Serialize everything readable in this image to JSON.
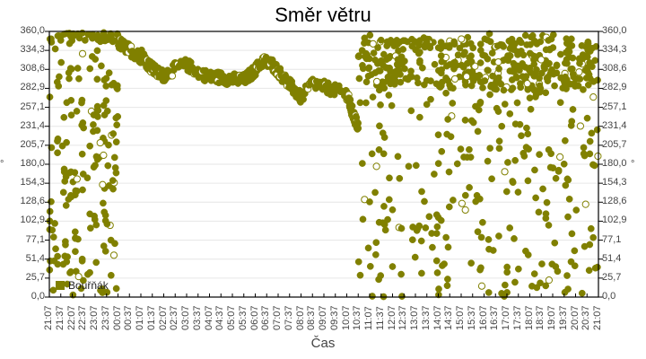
{
  "chart_data": {
    "type": "scatter",
    "title": "Směr větru",
    "xlabel": "Čas",
    "ylabel": "°",
    "ylim": [
      0,
      360
    ],
    "y_ticks": [
      "0,0",
      "25,7",
      "51,4",
      "77,1",
      "102,9",
      "128,6",
      "154,3",
      "180,0",
      "205,7",
      "231,4",
      "257,1",
      "282,9",
      "308,6",
      "334,3",
      "360,0"
    ],
    "x_ticks": [
      "21:07",
      "21:37",
      "22:07",
      "22:37",
      "23:07",
      "23:37",
      "00:07",
      "00:37",
      "01:07",
      "01:37",
      "02:07",
      "02:37",
      "03:07",
      "03:37",
      "04:07",
      "04:37",
      "05:07",
      "05:37",
      "06:07",
      "06:37",
      "07:07",
      "07:37",
      "08:07",
      "08:37",
      "09:07",
      "09:37",
      "10:07",
      "10:37",
      "11:07",
      "11:37",
      "12:07",
      "12:37",
      "13:07",
      "13:37",
      "14:07",
      "14:37",
      "15:07",
      "15:37",
      "16:07",
      "16:37",
      "17:07",
      "17:37",
      "18:07",
      "18:37",
      "19:07",
      "19:37",
      "20:07",
      "20:37",
      "21:07"
    ],
    "grid": true,
    "legend_position": "lower-left-inside",
    "series": [
      {
        "name": "Bouřňák",
        "color": "#808000",
        "description": "Wind direction samples over 24h; scattered 0–360° from 21:07–00:07, steady band ~290–330° from 00:37–09:37, scattered again 10:07–21:07 with cluster near 300–350°",
        "segments": [
          {
            "from": 0.0,
            "to": 6.0,
            "mode": "scatter",
            "min": 0,
            "max": 360,
            "count": 170
          },
          {
            "from": 0.0,
            "to": 6.0,
            "mode": "band",
            "center": 352,
            "spread": 6,
            "count": 40
          },
          {
            "from": 6.0,
            "to": 8.0,
            "mode": "trend",
            "values": [
              345,
              340,
              335,
              330,
              325
            ]
          },
          {
            "from": 8.0,
            "to": 10.0,
            "mode": "trend",
            "values": [
              330,
              315,
              305,
              300
            ]
          },
          {
            "from": 10.0,
            "to": 14.0,
            "mode": "trend",
            "values": [
              300,
              310,
              315,
              305,
              298
            ]
          },
          {
            "from": 14.0,
            "to": 17.0,
            "mode": "trend",
            "values": [
              298,
              298,
              296,
              295,
              294
            ]
          },
          {
            "from": 17.0,
            "to": 19.5,
            "mode": "trend",
            "values": [
              294,
              305,
              320,
              315
            ]
          },
          {
            "from": 19.5,
            "to": 22.0,
            "mode": "trend",
            "values": [
              315,
              300,
              285,
              270
            ]
          },
          {
            "from": 22.0,
            "to": 26.0,
            "mode": "trend",
            "values": [
              270,
              290,
              285,
              280,
              275
            ]
          },
          {
            "from": 26.0,
            "to": 27.0,
            "mode": "trend",
            "values": [
              275,
              250,
              230
            ]
          },
          {
            "from": 27.0,
            "to": 48.0,
            "mode": "scatter",
            "min": 0,
            "max": 360,
            "count": 330
          },
          {
            "from": 27.0,
            "to": 48.0,
            "mode": "band",
            "center": 315,
            "spread": 35,
            "count": 320
          }
        ]
      }
    ]
  },
  "legend": {
    "label": "Bouřňák"
  },
  "y_unit_left": "°",
  "y_unit_right": "°"
}
